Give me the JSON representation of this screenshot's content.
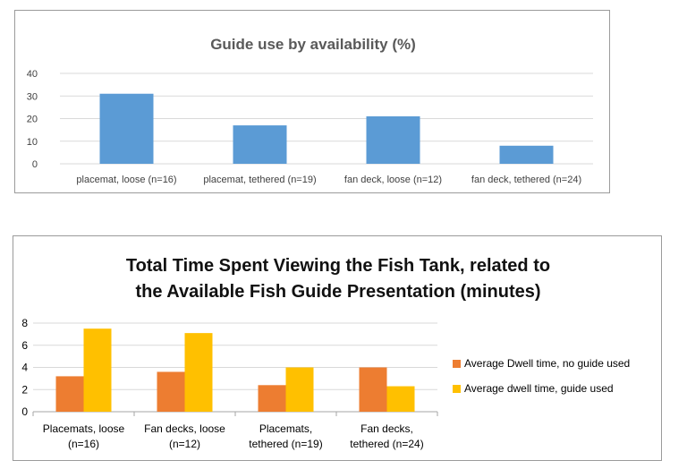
{
  "chart_data": [
    {
      "type": "bar",
      "title": "Guide use by availability (%)",
      "categories": [
        "placemat, loose (n=16)",
        "placemat, tethered (n=19)",
        "fan deck,  loose (n=12)",
        "fan deck,  tethered (n=24)"
      ],
      "values": [
        31,
        17,
        21,
        8
      ],
      "ylim": [
        0,
        40
      ],
      "yticks": [
        "0",
        "10",
        "20",
        "30",
        "40"
      ],
      "grid": true,
      "color": "#5b9bd5"
    },
    {
      "type": "bar",
      "title_lines": [
        "Total Time Spent Viewing the Fish Tank, related to",
        "the Available Fish Guide Presentation (minutes)"
      ],
      "categories": [
        [
          "Placemats,  loose",
          "(n=16)"
        ],
        [
          "Fan decks, loose",
          "(n=12)"
        ],
        [
          "Placemats,",
          "tethered  (n=19)"
        ],
        [
          "Fan decks,",
          "tethered  (n=24)"
        ]
      ],
      "series": [
        {
          "name": "Average  Dwell time,  no guide used",
          "values": [
            3.2,
            3.6,
            2.4,
            4.0
          ],
          "color": "#ed7d31"
        },
        {
          "name": "Average  dwell time,  guide used",
          "values": [
            7.5,
            7.1,
            4.0,
            2.3
          ],
          "color": "#ffc000"
        }
      ],
      "ylim": [
        0,
        8
      ],
      "yticks": [
        "0",
        "2",
        "4",
        "6",
        "8"
      ],
      "grid": true,
      "legend": "right"
    }
  ]
}
